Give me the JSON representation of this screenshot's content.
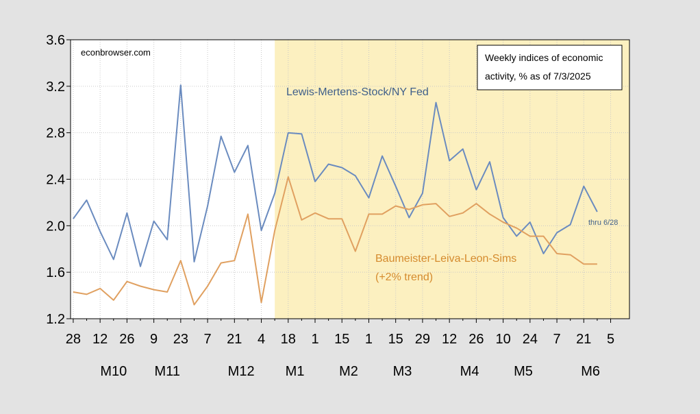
{
  "watermark": "econbrowser.com",
  "legend_box": {
    "line1": "Weekly indices of economic",
    "line2": "activity, % as of 7/3/2025"
  },
  "chart_data": {
    "type": "line",
    "title": "Weekly indices of economic activity, % as of 7/3/2025",
    "ylim": [
      1.2,
      3.6
    ],
    "y_ticks": [
      "1.2",
      "1.6",
      "2.0",
      "2.4",
      "2.8",
      "3.2",
      "3.6"
    ],
    "x_tick_labels": [
      "28",
      "12",
      "26",
      "9",
      "23",
      "7",
      "21",
      "4",
      "18",
      "1",
      "15",
      "1",
      "15",
      "29",
      "12",
      "26",
      "10",
      "24",
      "7",
      "21",
      "5"
    ],
    "x_month_labels": [
      "M10",
      "M11",
      "M12",
      "M1",
      "M2",
      "M3",
      "M4",
      "M5",
      "M6"
    ],
    "x_week_range": [
      -0.2,
      41.4
    ],
    "shaded_region": {
      "start_week": 15,
      "end_week": 41.4,
      "color": "#fcf0c0"
    },
    "grid": true,
    "series": [
      {
        "name": "Lewis-Mertens-Stock/NY Fed",
        "color": "#6a8bbf",
        "label_color": "#3f5f8a",
        "values": [
          2.06,
          2.22,
          1.95,
          1.71,
          2.11,
          1.65,
          2.04,
          1.88,
          3.21,
          1.69,
          2.17,
          2.77,
          2.46,
          2.69,
          1.96,
          2.28,
          2.8,
          2.79,
          2.38,
          2.53,
          2.5,
          2.43,
          2.24,
          2.6,
          2.34,
          2.07,
          2.28,
          3.06,
          2.56,
          2.66,
          2.31,
          2.55,
          2.07,
          1.91,
          2.03,
          1.76,
          1.94,
          2.01,
          2.34,
          2.12
        ]
      },
      {
        "name": "Baumeister-Leiva-Leon-Sims",
        "name_line2": "(+2% trend)",
        "color": "#e0a060",
        "label_color": "#d58b2e",
        "values": [
          1.43,
          1.41,
          1.46,
          1.36,
          1.52,
          1.48,
          1.45,
          1.43,
          1.7,
          1.32,
          1.48,
          1.68,
          1.7,
          2.1,
          1.34,
          1.96,
          2.42,
          2.05,
          2.11,
          2.06,
          2.06,
          1.78,
          2.1,
          2.1,
          2.17,
          2.14,
          2.18,
          2.19,
          2.08,
          2.11,
          2.19,
          2.1,
          2.03,
          1.98,
          1.91,
          1.91,
          1.76,
          1.75,
          1.67,
          1.67
        ]
      }
    ],
    "annotation": "thru 6/28"
  }
}
